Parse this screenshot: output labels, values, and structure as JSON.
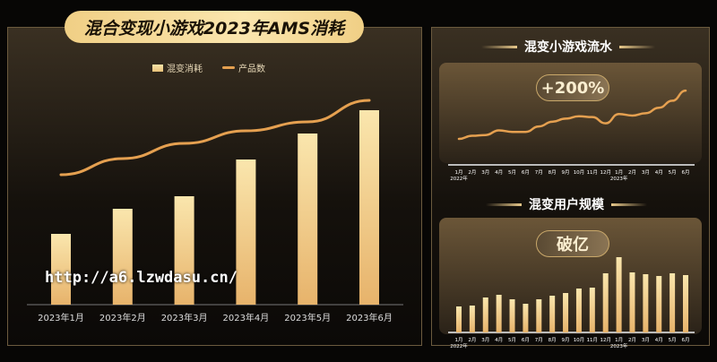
{
  "chart_data": [
    {
      "type": "bar+line",
      "title": "混合变现小游戏2023年AMS消耗",
      "categories": [
        "2023年1月",
        "2023年2月",
        "2023年3月",
        "2023年4月",
        "2023年5月",
        "2023年6月"
      ],
      "series": [
        {
          "name": "混变消耗",
          "type": "bar",
          "values": [
            79,
            107,
            121,
            162,
            191,
            217
          ]
        },
        {
          "name": "产品数",
          "type": "line",
          "values": [
            145,
            163,
            180,
            194,
            204,
            228
          ]
        }
      ],
      "legend": "top-center",
      "grid": false
    },
    {
      "type": "line",
      "title": "混变小游戏流水",
      "annotation": "+200%",
      "categories": [
        "2022年1月",
        "2月",
        "3月",
        "4月",
        "5月",
        "6月",
        "7月",
        "8月",
        "9月",
        "10月",
        "11月",
        "12月",
        "2023年1月",
        "2月",
        "3月",
        "4月",
        "5月",
        "6月"
      ],
      "values": [
        8,
        12,
        13,
        19,
        17,
        17,
        24,
        30,
        34,
        37,
        36,
        28,
        40,
        38,
        41,
        48,
        57,
        70
      ],
      "grid": false
    },
    {
      "type": "bar",
      "title": "混变用户规模",
      "annotation": "破亿",
      "categories": [
        "2022年1月",
        "2月",
        "3月",
        "4月",
        "5月",
        "6月",
        "7月",
        "8月",
        "9月",
        "10月",
        "11月",
        "12月",
        "2023年1月",
        "2月",
        "3月",
        "4月",
        "5月",
        "6月"
      ],
      "values": [
        29,
        30,
        39,
        42,
        37,
        32,
        37,
        41,
        44,
        49,
        50,
        66,
        84,
        67,
        65,
        63,
        66,
        64
      ],
      "grid": false
    }
  ],
  "watermark": "http://a6.lzwdasu.cn/"
}
